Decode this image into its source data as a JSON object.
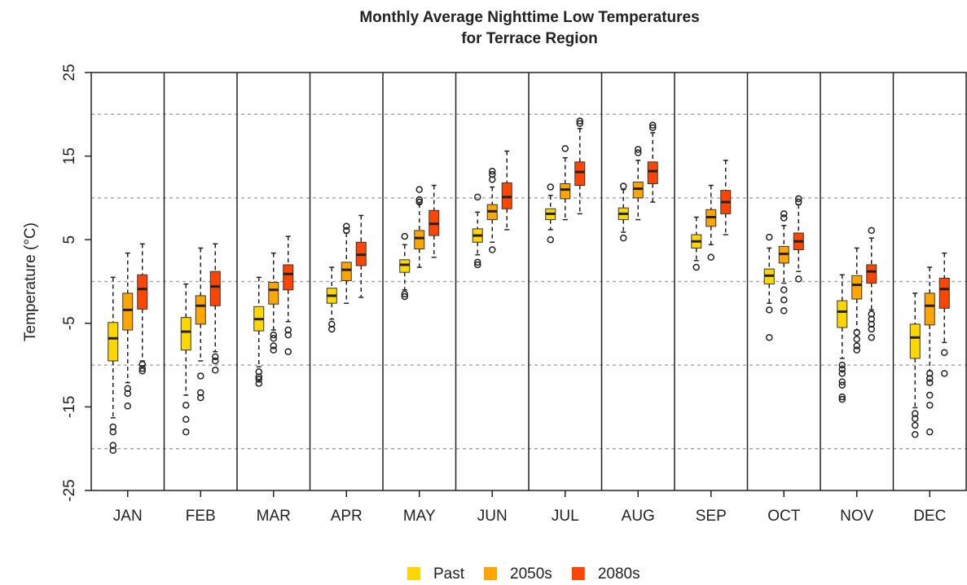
{
  "chart_data": {
    "type": "box",
    "title": [
      "Monthly Average Nighttime Low Temperatures",
      "for Terrace Region"
    ],
    "y_label": "Temperature (°C)",
    "categories": [
      "JAN",
      "FEB",
      "MAR",
      "APR",
      "MAY",
      "JUN",
      "JUL",
      "AUG",
      "SEP",
      "OCT",
      "NOV",
      "DEC"
    ],
    "ylim": [
      -25,
      25
    ],
    "yticks": [
      -25,
      -15,
      -5,
      5,
      15,
      25
    ],
    "grid_lines": [
      -20,
      -10,
      0,
      10,
      20
    ],
    "series": [
      {
        "name": "Past",
        "color": "#ffd700",
        "boxes": [
          {
            "min": -16.3,
            "q1": -9.5,
            "median": -6.8,
            "q3": -4.9,
            "max": 0.5,
            "outliers": [
              -17.4,
              -18,
              -19.6,
              -20.2
            ]
          },
          {
            "min": -13.6,
            "q1": -8.2,
            "median": -6,
            "q3": -4.3,
            "max": -0.3,
            "outliers": [
              -14.8,
              -16.5,
              -18
            ]
          },
          {
            "min": -10.2,
            "q1": -5.9,
            "median": -4.5,
            "q3": -3,
            "max": 0.5,
            "outliers": [
              -10.8,
              -11.4,
              -11.7,
              -12.2
            ]
          },
          {
            "min": -4.5,
            "q1": -2.6,
            "median": -1.7,
            "q3": -0.8,
            "max": 1.7,
            "outliers": [
              -5.1,
              -5.7
            ]
          },
          {
            "min": -1,
            "q1": 1.1,
            "median": 2,
            "q3": 2.6,
            "max": 4.4,
            "outliers": [
              5.4,
              -1.5,
              -1.8
            ]
          },
          {
            "min": 3.2,
            "q1": 4.7,
            "median": 5.5,
            "q3": 6.3,
            "max": 8.3,
            "outliers": [
              10.1,
              2.3,
              2
            ]
          },
          {
            "min": 6.2,
            "q1": 7.4,
            "median": 8.1,
            "q3": 8.7,
            "max": 10.3,
            "outliers": [
              11.3,
              5
            ]
          },
          {
            "min": 5.9,
            "q1": 7.4,
            "median": 8.1,
            "q3": 8.8,
            "max": 11,
            "outliers": [
              11.4,
              5.2
            ]
          },
          {
            "min": 2.5,
            "q1": 4,
            "median": 4.8,
            "q3": 5.6,
            "max": 7.7,
            "outliers": [
              1.7
            ]
          },
          {
            "min": -2.6,
            "q1": -0.3,
            "median": 0.7,
            "q3": 1.5,
            "max": 4,
            "outliers": [
              5.3,
              -3.4,
              -6.7
            ]
          },
          {
            "min": -9.2,
            "q1": -5.5,
            "median": -3.6,
            "q3": -2.3,
            "max": 0.8,
            "outliers": [
              -10,
              -10.5,
              -11,
              -12,
              -12.4,
              -13.8,
              -14.1
            ]
          },
          {
            "min": -15.1,
            "q1": -9.2,
            "median": -6.7,
            "q3": -5.1,
            "max": -1.4,
            "outliers": [
              -15.8,
              -16.4,
              -17.2,
              -18.3
            ]
          }
        ]
      },
      {
        "name": "2050s",
        "color": "#ffa500",
        "boxes": [
          {
            "min": -12.1,
            "q1": -5.8,
            "median": -3.4,
            "q3": -1.4,
            "max": 3.4,
            "outliers": [
              -12.8,
              -13.4,
              -14.9
            ]
          },
          {
            "min": -9.5,
            "q1": -5.1,
            "median": -2.9,
            "q3": -1.7,
            "max": 4,
            "outliers": [
              -11.3,
              -13.3,
              -13.9
            ]
          },
          {
            "min": -5.8,
            "q1": -2.7,
            "median": -1,
            "q3": -0.1,
            "max": 3.4,
            "outliers": [
              -6.4,
              -6.8,
              -7.7,
              -8.2
            ]
          },
          {
            "min": -2.6,
            "q1": 0.1,
            "median": 1.4,
            "q3": 2.3,
            "max": 5.8,
            "outliers": [
              6.6,
              6.1
            ]
          },
          {
            "min": 1.7,
            "q1": 3.9,
            "median": 5.2,
            "q3": 6.1,
            "max": 9.3,
            "outliers": [
              11,
              9.8,
              9.5
            ]
          },
          {
            "min": 4.7,
            "q1": 7.4,
            "median": 8.4,
            "q3": 9.2,
            "max": 11.3,
            "outliers": [
              13.2,
              12.8,
              12.2,
              3.8
            ]
          },
          {
            "min": 7.4,
            "q1": 9.9,
            "median": 11,
            "q3": 11.7,
            "max": 14.8,
            "outliers": [
              15.9
            ]
          },
          {
            "min": 7.4,
            "q1": 10,
            "median": 11.1,
            "q3": 11.9,
            "max": 14.5,
            "outliers": [
              15.8,
              15.4
            ]
          },
          {
            "min": 4.4,
            "q1": 6.6,
            "median": 7.7,
            "q3": 8.6,
            "max": 11.5,
            "outliers": [
              2.9
            ]
          },
          {
            "min": -0.2,
            "q1": 2.2,
            "median": 3.3,
            "q3": 4.2,
            "max": 6.7,
            "outliers": [
              8.1,
              7.6,
              -1,
              -2.2,
              -3.5
            ]
          },
          {
            "min": -5.8,
            "q1": -2.1,
            "median": -0.4,
            "q3": 0.7,
            "max": 4,
            "outliers": [
              -6.1,
              -6.9,
              -7.7,
              -8.2
            ]
          },
          {
            "min": -10.7,
            "q1": -5.2,
            "median": -2.9,
            "q3": -1.4,
            "max": 1.7,
            "outliers": [
              -11,
              -11.6,
              -12.1,
              -13.6,
              -14.8,
              -18
            ]
          }
        ]
      },
      {
        "name": "2080s",
        "color": "#ff4500",
        "boxes": [
          {
            "min": -9.5,
            "q1": -3.3,
            "median": -0.9,
            "q3": 0.8,
            "max": 4.5,
            "outliers": [
              -9.9,
              -10.4,
              -10.7
            ]
          },
          {
            "min": -8.4,
            "q1": -2.9,
            "median": -0.6,
            "q3": 1.2,
            "max": 4.5,
            "outliers": [
              -9,
              -9.5,
              -10.6
            ]
          },
          {
            "min": -4.8,
            "q1": -1,
            "median": 0.9,
            "q3": 2,
            "max": 5.4,
            "outliers": [
              -5.8,
              -6.4,
              -8.4
            ]
          },
          {
            "min": -1.9,
            "q1": 1.9,
            "median": 3.2,
            "q3": 4.7,
            "max": 7.9,
            "outliers": []
          },
          {
            "min": 2.9,
            "q1": 5.5,
            "median": 6.9,
            "q3": 8.5,
            "max": 11.5,
            "outliers": []
          },
          {
            "min": 6.2,
            "q1": 8.7,
            "median": 10.1,
            "q3": 11.8,
            "max": 15.6,
            "outliers": []
          },
          {
            "min": 8.1,
            "q1": 11.5,
            "median": 13.1,
            "q3": 14.3,
            "max": 18.3,
            "outliers": [
              19.2,
              18.9
            ]
          },
          {
            "min": 9.5,
            "q1": 11.7,
            "median": 13.2,
            "q3": 14.3,
            "max": 17.8,
            "outliers": [
              18.7,
              18.4
            ]
          },
          {
            "min": 5.6,
            "q1": 8.1,
            "median": 9.5,
            "q3": 10.9,
            "max": 14.5,
            "outliers": []
          },
          {
            "min": 1.2,
            "q1": 3.8,
            "median": 4.8,
            "q3": 5.8,
            "max": 9.2,
            "outliers": [
              9.9,
              9.5,
              0.3
            ]
          },
          {
            "min": -3.4,
            "q1": -0.2,
            "median": 1.2,
            "q3": 2,
            "max": 5.2,
            "outliers": [
              6.1,
              -3.9,
              -4.5,
              -5.1,
              -5.7,
              -6.7
            ]
          },
          {
            "min": -7.3,
            "q1": -3.2,
            "median": -0.9,
            "q3": 0.4,
            "max": 3.4,
            "outliers": [
              -8.5,
              -11
            ]
          }
        ]
      }
    ]
  }
}
